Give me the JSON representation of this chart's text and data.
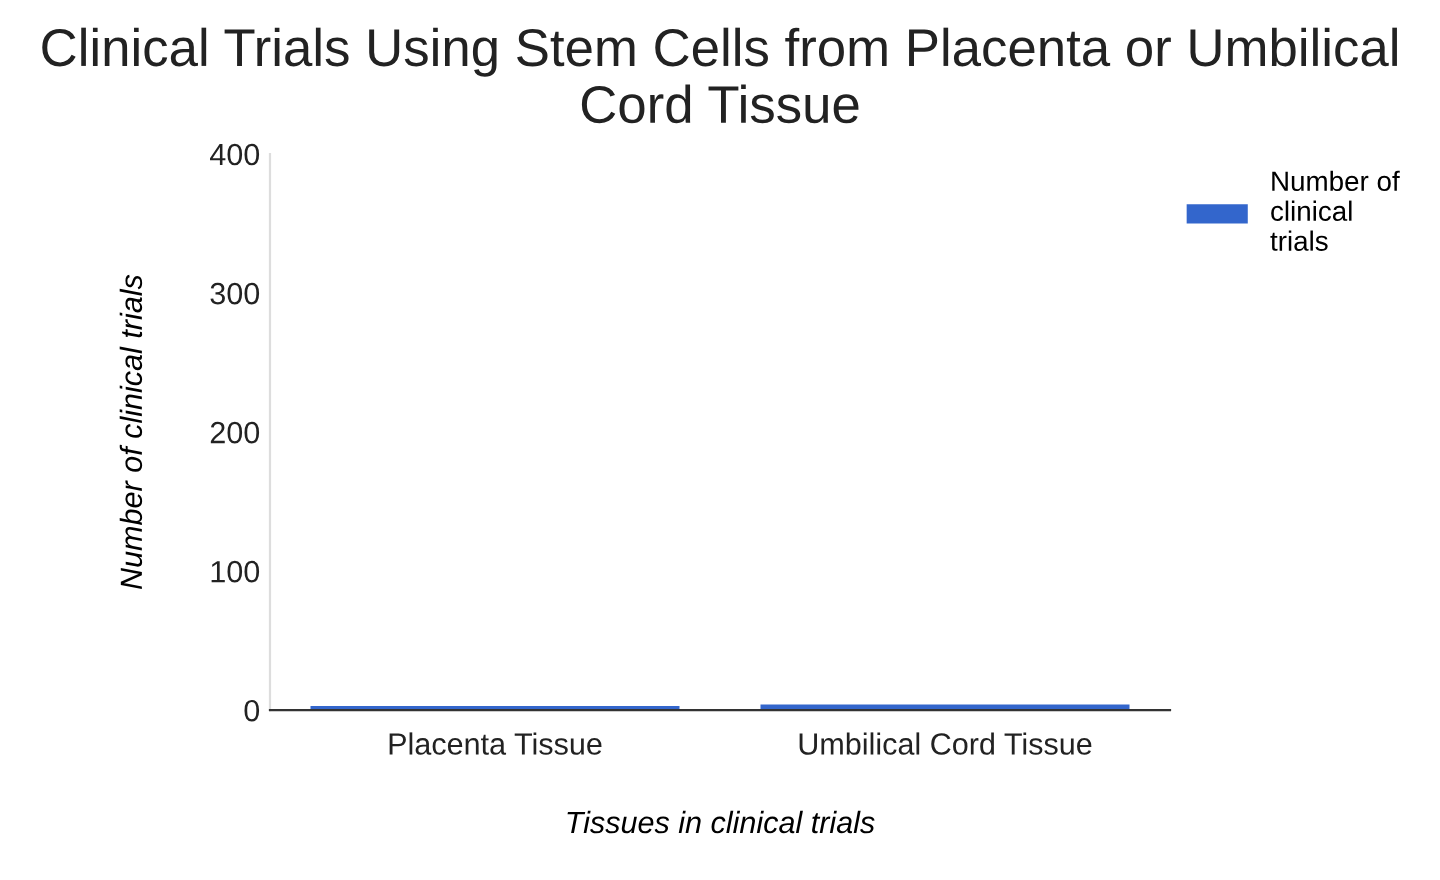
{
  "chart_data": {
    "type": "bar",
    "title": "Clinical Trials Using Stem Cells from Placenta or Umbilical Cord Tissue",
    "xlabel": "Tissues in clinical trials",
    "ylabel": "Number of clinical trials",
    "categories": [
      "Placenta Tissue",
      "Umbilical Cord Tissue"
    ],
    "series": [
      {
        "name": "Number of clinical trials",
        "color": "#3366cc",
        "values": [
          3,
          4
        ]
      }
    ],
    "ylim": [
      0,
      400
    ],
    "yticks": [
      0,
      100,
      200,
      300,
      400
    ],
    "grid": false,
    "legend": "top right"
  }
}
